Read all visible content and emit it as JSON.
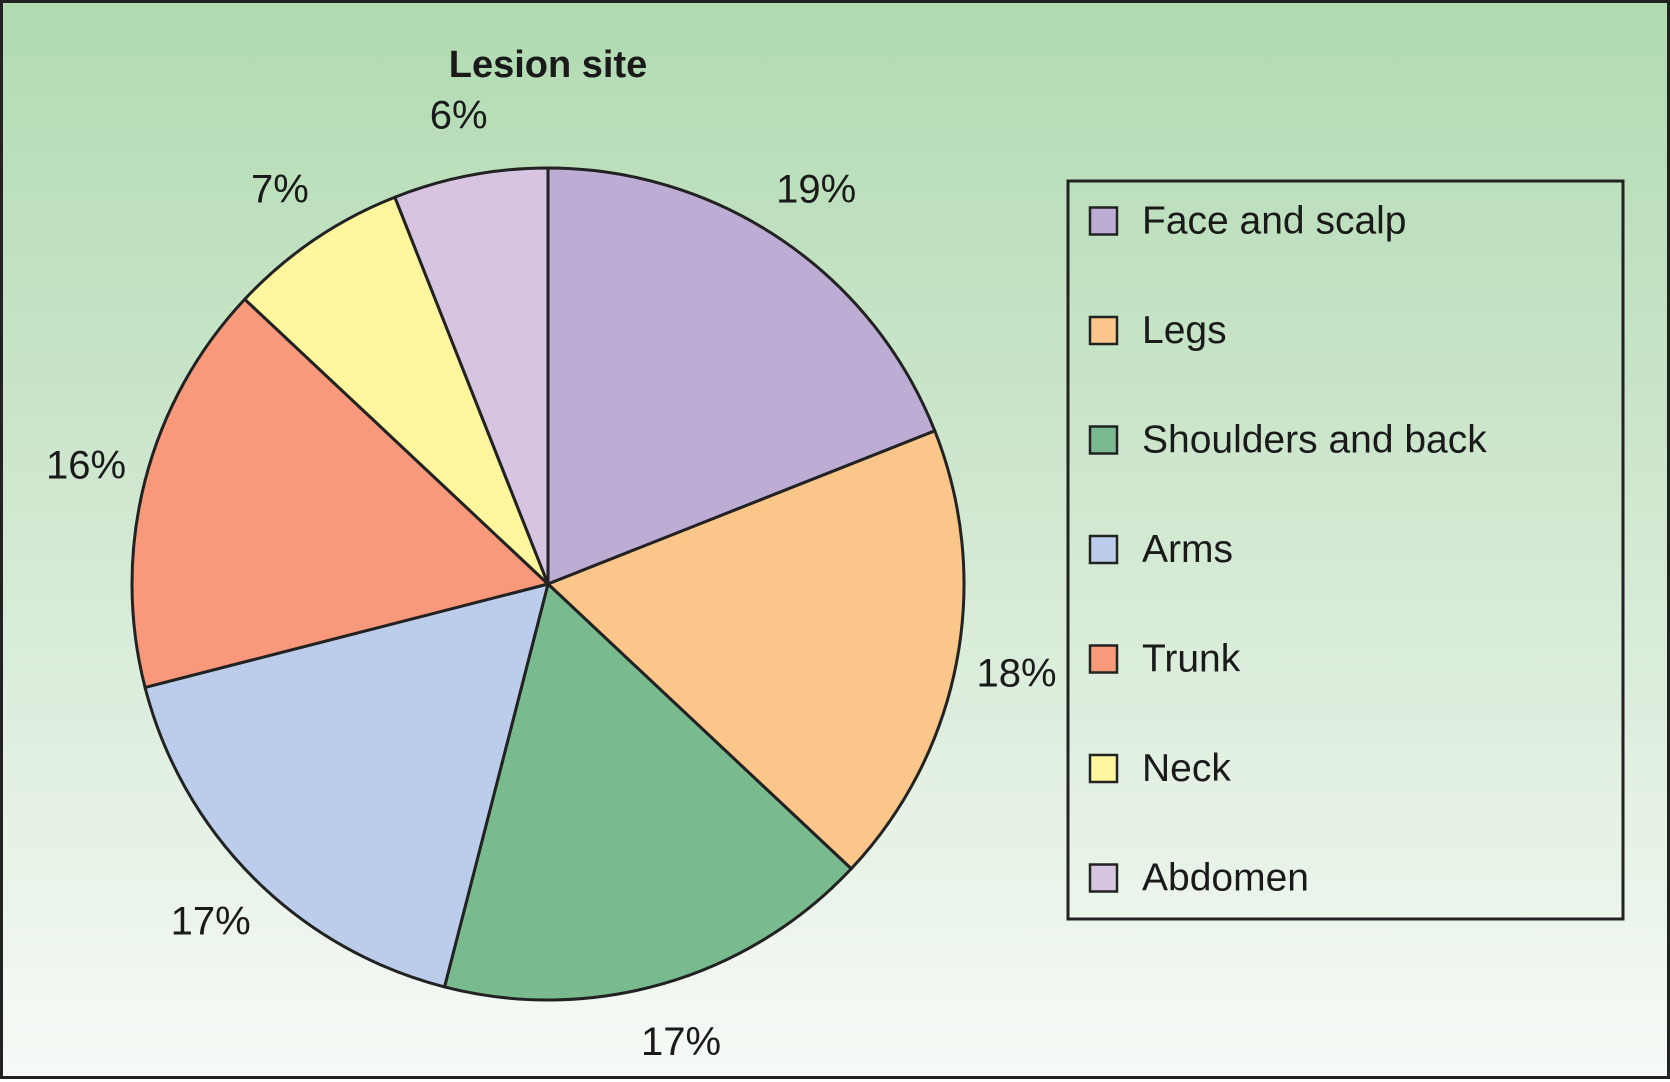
{
  "chart_data": {
    "type": "pie",
    "title": "Lesion site",
    "slices": [
      {
        "label": "Face and scalp",
        "value": 19,
        "display": "19%",
        "color": "#bdadd5"
      },
      {
        "label": "Legs",
        "value": 18,
        "display": "18%",
        "color": "#fbc68a"
      },
      {
        "label": "Shoulders and back",
        "value": 17,
        "display": "17%",
        "color": "#79bb8f"
      },
      {
        "label": "Arms",
        "value": 17,
        "display": "17%",
        "color": "#bccdeb"
      },
      {
        "label": "Trunk",
        "value": 16,
        "display": "16%",
        "color": "#f7997a"
      },
      {
        "label": "Neck",
        "value": 7,
        "display": "7%",
        "color": "#fff69d"
      },
      {
        "label": "Abdomen",
        "value": 6,
        "display": "6%",
        "color": "#d7c4e1"
      }
    ],
    "start": "top",
    "direction": "clockwise",
    "legend_position": "right"
  },
  "colors": {
    "background_top": "#b1dbb1",
    "background_bottom": "#f7faf7",
    "outline": "#222222"
  }
}
